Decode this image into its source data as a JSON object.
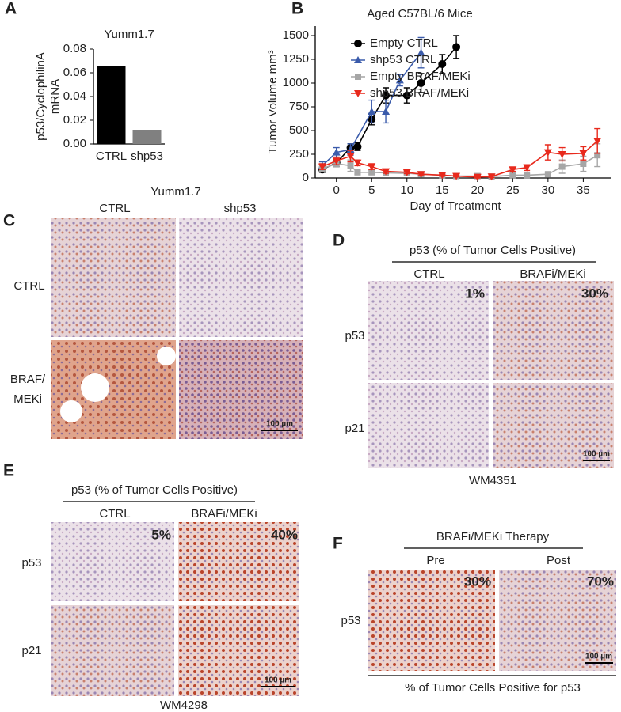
{
  "chart_data": [
    {
      "type": "bar",
      "panel": "A",
      "title": "Yumm1.7",
      "ylabel": [
        "p53/CyclophilinA",
        "mRNA"
      ],
      "categories": [
        "CTRL",
        "shp53"
      ],
      "values": [
        0.066,
        0.012
      ],
      "colors": [
        "#000000",
        "#808080"
      ],
      "ylim": [
        0,
        0.08
      ],
      "yticks": [
        {
          "value": 0,
          "label": "0.00"
        },
        0.02,
        0.04,
        0.06,
        0.08
      ]
    },
    {
      "type": "line",
      "panel": "B",
      "title": "Aged C57BL/6 Mice",
      "ylabel": "Tumor Volume mm³",
      "xlabel": "Day of Treatment",
      "xlim": [
        -3,
        39
      ],
      "xticks": [
        0,
        5,
        10,
        15,
        20,
        25,
        30,
        35
      ],
      "ylim": [
        0,
        1600
      ],
      "yticks": [
        0,
        250,
        500,
        750,
        1000,
        1250,
        1500
      ],
      "legend": "upper left",
      "series": [
        {
          "name": "Empty CTRL",
          "color": "#000000",
          "marker": "circle",
          "x": [
            -2,
            0,
            2,
            3,
            5,
            7,
            10,
            12,
            15,
            17
          ],
          "values": [
            90,
            160,
            320,
            330,
            620,
            870,
            870,
            1000,
            1200,
            1380
          ],
          "errors": [
            30,
            40,
            40,
            40,
            60,
            80,
            80,
            100,
            100,
            120
          ]
        },
        {
          "name": "shp53 CTRL",
          "color": "#3a5bab",
          "marker": "triangle",
          "x": [
            -2,
            0,
            2,
            5,
            7,
            9,
            12
          ],
          "values": [
            130,
            270,
            300,
            700,
            700,
            1030,
            1320
          ],
          "errors": [
            40,
            50,
            60,
            120,
            120,
            60,
            160
          ]
        },
        {
          "name": "Empty BRAF/MEKi",
          "color": "#a6a6a6",
          "marker": "square",
          "x": [
            -2,
            0,
            2,
            3,
            5,
            7,
            10,
            12,
            15,
            17,
            20,
            22,
            25,
            27,
            30,
            32,
            35,
            37
          ],
          "values": [
            100,
            150,
            130,
            60,
            60,
            55,
            50,
            40,
            30,
            20,
            20,
            15,
            30,
            30,
            40,
            120,
            150,
            240
          ],
          "errors": [
            20,
            30,
            60,
            20,
            20,
            15,
            15,
            10,
            10,
            10,
            10,
            10,
            15,
            15,
            20,
            70,
            80,
            120
          ]
        },
        {
          "name": "shp53 BRAF/MEKi",
          "color": "#e8291c",
          "marker": "triangle-down",
          "x": [
            -2,
            0,
            2,
            3,
            5,
            7,
            10,
            12,
            15,
            17,
            20,
            22,
            25,
            27,
            30,
            32,
            35,
            37
          ],
          "values": [
            120,
            180,
            230,
            160,
            120,
            70,
            60,
            40,
            30,
            20,
            10,
            15,
            90,
            110,
            270,
            250,
            260,
            390
          ],
          "errors": [
            30,
            40,
            60,
            30,
            30,
            20,
            15,
            15,
            10,
            10,
            10,
            10,
            20,
            30,
            80,
            70,
            70,
            130
          ]
        }
      ]
    }
  ],
  "panels": {
    "C": {
      "letter": "C",
      "title": "Yumm1.7",
      "columns": [
        "CTRL",
        "shp53"
      ],
      "rows": [
        [
          "CTRL"
        ],
        [
          "BRAF/",
          "MEKi"
        ]
      ],
      "scale_bar": "100 µm"
    },
    "D": {
      "letter": "D",
      "header": "p53 (% of Tumor Cells Positive)",
      "columns": [
        "CTRL",
        "BRAFi/MEKi"
      ],
      "percentages": [
        "1%",
        "30%"
      ],
      "rows": [
        "p53",
        "p21"
      ],
      "footer": "WM4351",
      "scale_bar": "100 µm"
    },
    "E": {
      "letter": "E",
      "header": "p53 (% of Tumor Cells Positive)",
      "columns": [
        "CTRL",
        "BRAFi/MEKi"
      ],
      "percentages": [
        "5%",
        "40%"
      ],
      "rows": [
        "p53",
        "p21"
      ],
      "footer": "WM4298",
      "scale_bar": "100 µm"
    },
    "F": {
      "letter": "F",
      "header": "BRAFi/MEKi Therapy",
      "columns": [
        "Pre",
        "Post"
      ],
      "percentages": [
        "30%",
        "70%"
      ],
      "rows": [
        "p53"
      ],
      "footer": "% of Tumor Cells Positive for p53",
      "scale_bar": "100 µm"
    },
    "A": {
      "letter": "A"
    },
    "B": {
      "letter": "B"
    }
  }
}
